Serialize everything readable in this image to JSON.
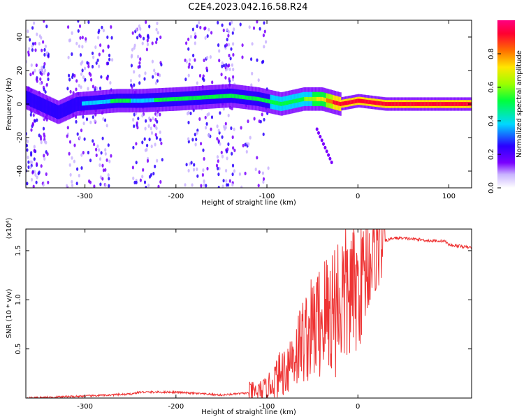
{
  "title": "C2E4.2023.042.16.58.R24",
  "colorbar": {
    "label": "Normalized spectral amplitude",
    "ticks": [
      "0.0",
      "0.2",
      "0.4",
      "0.6",
      "0.8"
    ]
  },
  "chart_data": [
    {
      "type": "heatmap",
      "xlabel": "Height of straight line (km)",
      "ylabel": "Frequency (Hz)",
      "xlim": [
        -365,
        125
      ],
      "ylim": [
        -50,
        50
      ],
      "xticks": [
        -300,
        -200,
        -100,
        0,
        100
      ],
      "xtick_labels": [
        "-300",
        "-200",
        "-100",
        "0",
        "100"
      ],
      "yticks": [
        -40,
        -20,
        0,
        20,
        40
      ],
      "ytick_labels": [
        "-40",
        "-20",
        "0",
        "20",
        "40"
      ],
      "colorscale": "rainbow",
      "zlim": [
        0,
        1
      ],
      "trend": [
        {
          "x": -350,
          "y": 0,
          "z": 0.25
        },
        {
          "x": -330,
          "y": -5,
          "z": 0.3
        },
        {
          "x": -310,
          "y": 0,
          "z": 0.28
        },
        {
          "x": -265,
          "y": 2,
          "z": 0.45
        },
        {
          "x": -240,
          "y": 2,
          "z": 0.4
        },
        {
          "x": -200,
          "y": 3,
          "z": 0.45
        },
        {
          "x": -170,
          "y": 4,
          "z": 0.5
        },
        {
          "x": -140,
          "y": 5,
          "z": 0.45
        },
        {
          "x": -110,
          "y": 3,
          "z": 0.45
        },
        {
          "x": -85,
          "y": 0,
          "z": 0.55
        },
        {
          "x": -60,
          "y": 3,
          "z": 0.55
        },
        {
          "x": -40,
          "y": 3,
          "z": 0.7
        },
        {
          "x": -20,
          "y": 0,
          "z": 0.95
        },
        {
          "x": 0,
          "y": 2,
          "z": 0.9
        },
        {
          "x": 30,
          "y": 0,
          "z": 0.95
        },
        {
          "x": 90,
          "y": 0,
          "z": 0.95
        },
        {
          "x": 125,
          "y": 0,
          "z": 0.95
        }
      ]
    },
    {
      "type": "line",
      "xlabel": "Height of straight line (km)",
      "ylabel": "SNR (10 * v/v)",
      "y_multiplier": "(x10⁴)",
      "xlim": [
        -365,
        125
      ],
      "ylim": [
        0,
        1.72
      ],
      "xticks": [
        -300,
        -200,
        -100,
        0
      ],
      "xtick_labels": [
        "-300",
        "-200",
        "-100",
        "0"
      ],
      "yticks": [
        0.5,
        1.0,
        1.5
      ],
      "ytick_labels": [
        "0.5",
        "1.0",
        "1.5"
      ],
      "series": [
        {
          "color": "#ee3333",
          "x": [
            -365,
            -300,
            -250,
            -240,
            -200,
            -150,
            -110,
            -100,
            -80,
            -60,
            -50,
            -40,
            -30,
            -20,
            -10,
            0,
            10,
            20,
            30,
            40,
            60,
            80,
            95,
            100,
            125
          ],
          "y": [
            0.0,
            0.02,
            0.04,
            0.06,
            0.06,
            0.03,
            0.06,
            0.1,
            0.3,
            0.6,
            0.7,
            0.8,
            0.9,
            1.0,
            1.05,
            1.1,
            1.35,
            1.52,
            1.6,
            1.63,
            1.62,
            1.6,
            1.6,
            1.56,
            1.53
          ]
        }
      ]
    }
  ]
}
